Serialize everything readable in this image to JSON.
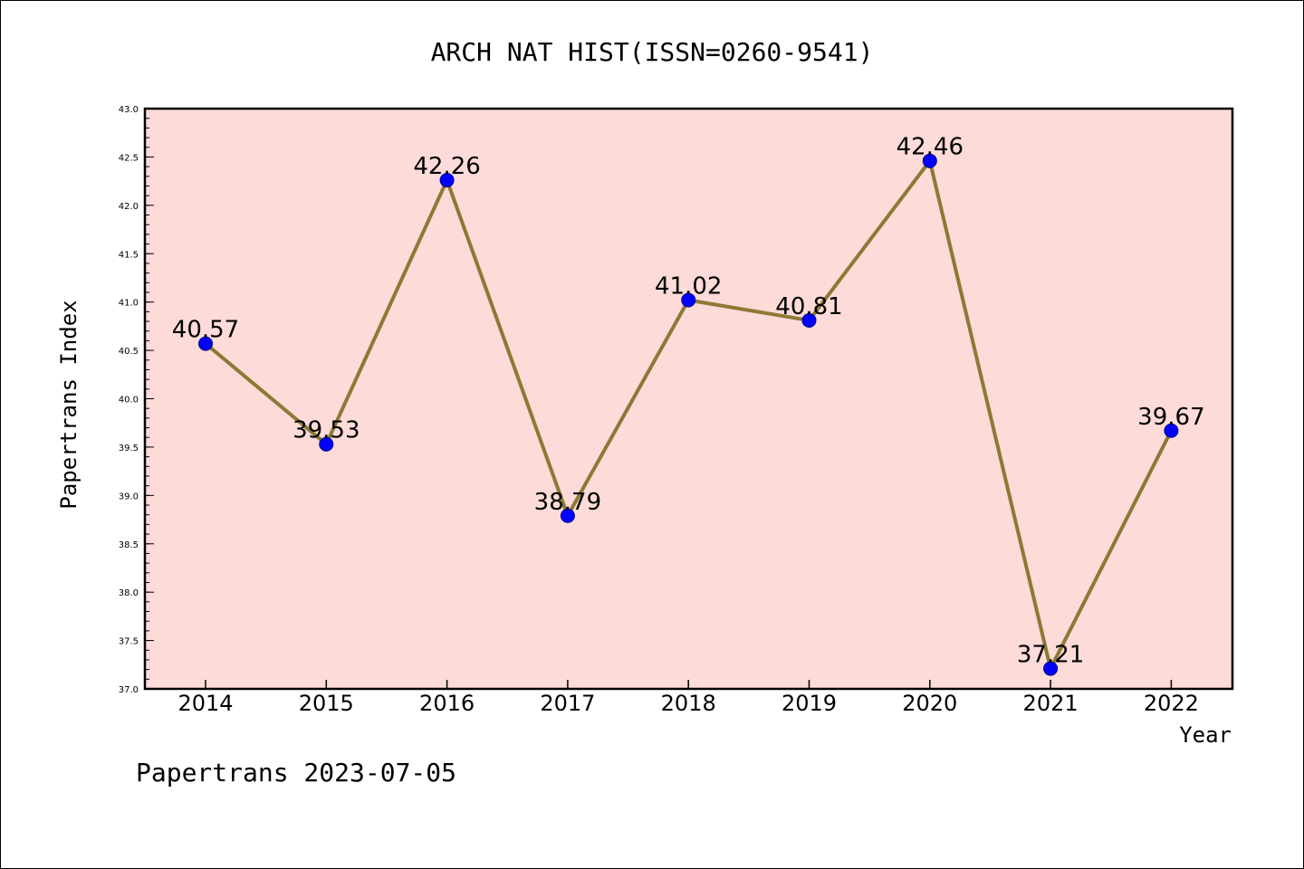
{
  "chart_data": {
    "type": "line",
    "title": "ARCH NAT HIST(ISSN=0260-9541)",
    "xlabel": "Year",
    "ylabel": "Papertrans Index",
    "categories": [
      "2014",
      "2015",
      "2016",
      "2017",
      "2018",
      "2019",
      "2020",
      "2021",
      "2022"
    ],
    "series": [
      {
        "values": [
          40.57,
          39.53,
          42.26,
          38.79,
          41.02,
          40.81,
          42.46,
          37.21,
          39.67
        ],
        "data_labels": [
          "40.57",
          "39.53",
          "42.26",
          "38.79",
          "41.02",
          "40.81",
          "42.46",
          "37.21",
          "39.67"
        ]
      }
    ],
    "ylim": [
      37.0,
      43.0
    ],
    "yticks": [
      "37.0",
      "37.5",
      "38.0",
      "38.5",
      "39.0",
      "39.5",
      "40.0",
      "40.5",
      "41.0",
      "41.5",
      "42.0",
      "42.5",
      "43.0"
    ],
    "grid": false,
    "colors": {
      "plot_background": "#fddbd8",
      "line": "#8b7a35",
      "marker_fill": "#0000ff",
      "marker_edge": "#00008b"
    }
  },
  "footer": "Papertrans 2023-07-05"
}
